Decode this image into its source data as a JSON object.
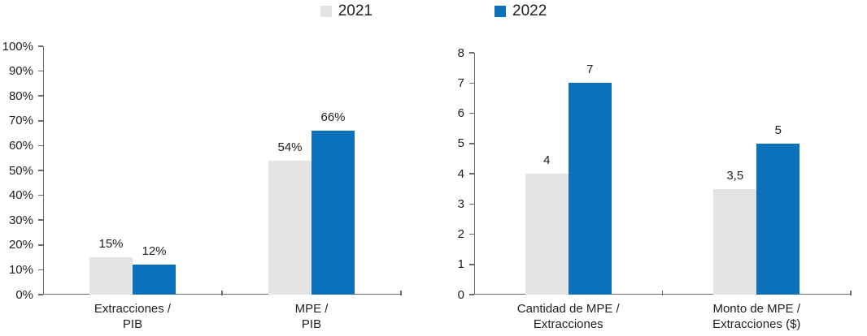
{
  "legend": {
    "items": [
      {
        "label": "2021",
        "color": "#e4e4e4"
      },
      {
        "label": "2022",
        "color": "#0b71bd"
      }
    ],
    "position": "top-center"
  },
  "colors": {
    "background": "#ffffff",
    "axis": "#6b6b6b",
    "text": "#1f1f1f",
    "series_2021": "#e4e4e4",
    "series_2022": "#0b71bd"
  },
  "chart_data": [
    {
      "type": "bar",
      "title": "",
      "xlabel": "",
      "ylabel": "",
      "grid": false,
      "categories": [
        [
          "Extracciones /",
          "PIB"
        ],
        [
          "MPE /",
          "PIB"
        ]
      ],
      "series": [
        {
          "name": "2021",
          "color": "#e4e4e4",
          "values": [
            15,
            54
          ],
          "labels": [
            "15%",
            "54%"
          ]
        },
        {
          "name": "2022",
          "color": "#0b71bd",
          "values": [
            12,
            66
          ],
          "labels": [
            "12%",
            "66%"
          ]
        }
      ],
      "ylim": [
        0,
        100
      ],
      "yticks": [
        "0%",
        "10%",
        "20%",
        "30%",
        "40%",
        "50%",
        "60%",
        "70%",
        "80%",
        "90%",
        "100%"
      ]
    },
    {
      "type": "bar",
      "title": "",
      "xlabel": "",
      "ylabel": "",
      "grid": false,
      "categories": [
        [
          "Cantidad de MPE /",
          "Extracciones"
        ],
        [
          "Monto de MPE /",
          "Extracciones ($)"
        ]
      ],
      "series": [
        {
          "name": "2021",
          "color": "#e4e4e4",
          "values": [
            4,
            3.5
          ],
          "labels": [
            "4",
            "3,5"
          ]
        },
        {
          "name": "2022",
          "color": "#0b71bd",
          "values": [
            7,
            5
          ],
          "labels": [
            "7",
            "5"
          ]
        }
      ],
      "ylim": [
        0,
        8
      ],
      "yticks": [
        "0",
        "1",
        "2",
        "3",
        "4",
        "5",
        "6",
        "7",
        "8"
      ]
    }
  ]
}
